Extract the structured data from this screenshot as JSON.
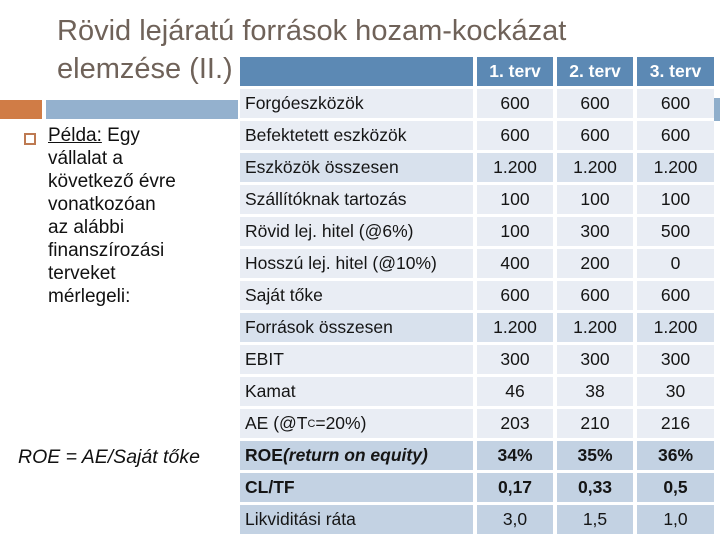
{
  "title": "Rövid lejáratú források hozam-kockázat\nelemzése (II.)",
  "bullet": {
    "lead": "Példa:",
    "rest": " Egy\nvállalat a\nkövetkező évre\nvonatkozóan\naz alábbi\nfinanszírozási\nterveket\nmérlegeli:"
  },
  "formula": "ROE = AE/Saját tőke",
  "colors": {
    "header_blue": "#5C89B4",
    "row_light": "#E9EDF4",
    "row_total": "#D8E1ED",
    "row_emphasis": "#C3D2E3",
    "accent_orange": "#D07C46",
    "accent_blue_bar": "#94B1CE",
    "title_text": "#6F6259"
  },
  "table": {
    "columns": [
      "",
      "1. terv",
      "2. terv",
      "3. terv"
    ],
    "rows": [
      {
        "label_parts": [
          {
            "t": "Forgóeszközök",
            "s": "n"
          }
        ],
        "values": [
          "600",
          "600",
          "600"
        ],
        "shade": "light",
        "bold_values": false
      },
      {
        "label_parts": [
          {
            "t": "Befektetett eszközök",
            "s": "n"
          }
        ],
        "values": [
          "600",
          "600",
          "600"
        ],
        "shade": "light",
        "bold_values": false
      },
      {
        "label_parts": [
          {
            "t": "Eszközök összesen",
            "s": "n"
          }
        ],
        "values": [
          "1.200",
          "1.200",
          "1.200"
        ],
        "shade": "mid",
        "bold_values": false
      },
      {
        "label_parts": [
          {
            "t": "Szállítóknak tartozás",
            "s": "n"
          }
        ],
        "values": [
          "100",
          "100",
          "100"
        ],
        "shade": "light",
        "bold_values": false
      },
      {
        "label_parts": [
          {
            "t": "Rövid lej. hitel (@6%)",
            "s": "n"
          }
        ],
        "values": [
          "100",
          "300",
          "500"
        ],
        "shade": "light",
        "bold_values": false
      },
      {
        "label_parts": [
          {
            "t": "Hosszú lej. hitel (@10%)",
            "s": "n"
          }
        ],
        "values": [
          "400",
          "200",
          "0"
        ],
        "shade": "light",
        "bold_values": false
      },
      {
        "label_parts": [
          {
            "t": "Saját tőke",
            "s": "n"
          }
        ],
        "values": [
          "600",
          "600",
          "600"
        ],
        "shade": "light",
        "bold_values": false
      },
      {
        "label_parts": [
          {
            "t": "Források összesen",
            "s": "n"
          }
        ],
        "values": [
          "1.200",
          "1.200",
          "1.200"
        ],
        "shade": "mid",
        "bold_values": false
      },
      {
        "label_parts": [
          {
            "t": "EBIT",
            "s": "n"
          }
        ],
        "values": [
          "300",
          "300",
          "300"
        ],
        "shade": "light",
        "bold_values": false
      },
      {
        "label_parts": [
          {
            "t": "Kamat",
            "s": "n"
          }
        ],
        "values": [
          "46",
          "38",
          "30"
        ],
        "shade": "light",
        "bold_values": false
      },
      {
        "label_parts": [
          {
            "t": "AE (@T",
            "s": "n"
          },
          {
            "t": "C",
            "s": "sub"
          },
          {
            "t": "=20%)",
            "s": "n"
          }
        ],
        "values": [
          "203",
          "210",
          "216"
        ],
        "shade": "light",
        "bold_values": false
      },
      {
        "label_parts": [
          {
            "t": "ROE",
            "s": "b"
          },
          {
            "t": " (return on equity)",
            "s": "bi"
          }
        ],
        "values": [
          "34%",
          "35%",
          "36%"
        ],
        "shade": "dark",
        "bold_values": true
      },
      {
        "label_parts": [
          {
            "t": "CL/TF",
            "s": "b"
          }
        ],
        "values": [
          "0,17",
          "0,33",
          "0,5"
        ],
        "shade": "dark",
        "bold_values": true
      },
      {
        "label_parts": [
          {
            "t": "Likviditási ráta",
            "s": "n"
          }
        ],
        "values": [
          "3,0",
          "1,5",
          "1,0"
        ],
        "shade": "dark",
        "bold_values": false
      }
    ]
  }
}
